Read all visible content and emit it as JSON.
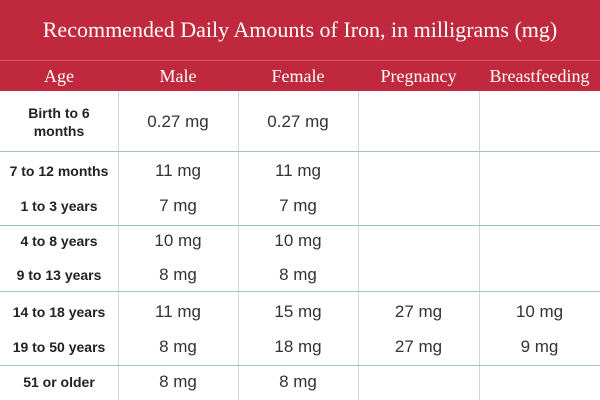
{
  "title": "Recommended Daily Amounts of Iron, in milligrams (mg)",
  "columns": [
    "Age",
    "Male",
    "Female",
    "Pregnancy",
    "Breastfeeding"
  ],
  "rows": [
    {
      "age": "Birth to 6 months",
      "male": "0.27 mg",
      "female": "0.27 mg",
      "pregnancy": "",
      "breastfeeding": ""
    },
    {
      "age": "7 to 12 months",
      "male": "11 mg",
      "female": "11 mg",
      "pregnancy": "",
      "breastfeeding": ""
    },
    {
      "age": "1 to 3 years",
      "male": "7 mg",
      "female": "7 mg",
      "pregnancy": "",
      "breastfeeding": ""
    },
    {
      "age": "4 to 8 years",
      "male": "10 mg",
      "female": "10 mg",
      "pregnancy": "",
      "breastfeeding": ""
    },
    {
      "age": "9 to 13 years",
      "male": "8 mg",
      "female": "8 mg",
      "pregnancy": "",
      "breastfeeding": ""
    },
    {
      "age": "14 to 18 years",
      "male": "11 mg",
      "female": "15 mg",
      "pregnancy": "27 mg",
      "breastfeeding": "10 mg"
    },
    {
      "age": "19 to 50 years",
      "male": "8 mg",
      "female": "18 mg",
      "pregnancy": "27 mg",
      "breastfeeding": "9 mg"
    },
    {
      "age": "51 or older",
      "male": "8 mg",
      "female": "8 mg",
      "pregnancy": "",
      "breastfeeding": ""
    }
  ],
  "colors": {
    "header_bg": "#c0283e",
    "divider": "#9fc4c6",
    "text": "#333333"
  }
}
